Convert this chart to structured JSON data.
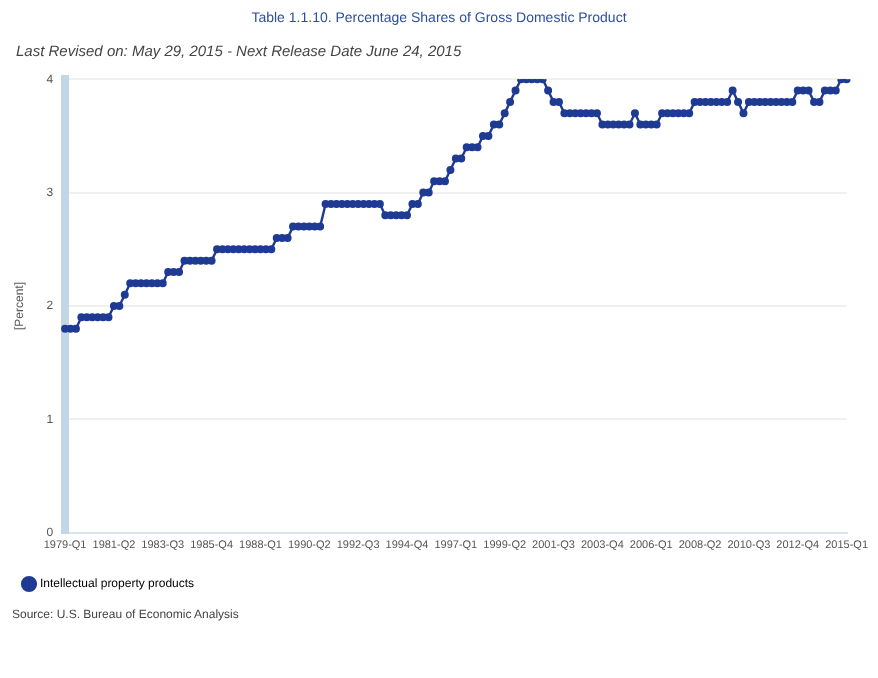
{
  "chart_data": {
    "type": "line",
    "title": "Table 1.1.10. Percentage Shares of Gross Domestic Product",
    "subtitle": "Last Revised on: May 29, 2015 - Next Release Date June 24, 2015",
    "ylabel": "[Percent]",
    "categories": [
      "1979-Q1",
      null,
      null,
      null,
      null,
      null,
      null,
      null,
      null,
      "1981-Q2",
      null,
      null,
      null,
      null,
      null,
      null,
      null,
      null,
      "1983-Q3",
      null,
      null,
      null,
      null,
      null,
      null,
      null,
      null,
      "1985-Q4",
      null,
      null,
      null,
      null,
      null,
      null,
      null,
      null,
      "1988-Q1",
      null,
      null,
      null,
      null,
      null,
      null,
      null,
      null,
      "1990-Q2",
      null,
      null,
      null,
      null,
      null,
      null,
      null,
      null,
      "1992-Q3",
      null,
      null,
      null,
      null,
      null,
      null,
      null,
      null,
      "1994-Q4",
      null,
      null,
      null,
      null,
      null,
      null,
      null,
      null,
      "1997-Q1",
      null,
      null,
      null,
      null,
      null,
      null,
      null,
      null,
      "1999-Q2",
      null,
      null,
      null,
      null,
      null,
      null,
      null,
      null,
      "2001-Q3",
      null,
      null,
      null,
      null,
      null,
      null,
      null,
      null,
      "2003-Q4",
      null,
      null,
      null,
      null,
      null,
      null,
      null,
      null,
      "2006-Q1",
      null,
      null,
      null,
      null,
      null,
      null,
      null,
      null,
      "2008-Q2",
      null,
      null,
      null,
      null,
      null,
      null,
      null,
      null,
      "2010-Q3",
      null,
      null,
      null,
      null,
      null,
      null,
      null,
      null,
      "2012-Q4",
      null,
      null,
      null,
      null,
      null,
      null,
      null,
      null,
      "2015-Q1"
    ],
    "series": [
      {
        "name": "Intellectual property products",
        "color": "#1f3a93",
        "values": [
          1.8,
          1.8,
          1.8,
          1.9,
          1.9,
          1.9,
          1.9,
          1.9,
          1.9,
          2.0,
          2.0,
          2.1,
          2.2,
          2.2,
          2.2,
          2.2,
          2.2,
          2.2,
          2.2,
          2.3,
          2.3,
          2.3,
          2.4,
          2.4,
          2.4,
          2.4,
          2.4,
          2.4,
          2.5,
          2.5,
          2.5,
          2.5,
          2.5,
          2.5,
          2.5,
          2.5,
          2.5,
          2.5,
          2.5,
          2.6,
          2.6,
          2.6,
          2.7,
          2.7,
          2.7,
          2.7,
          2.7,
          2.7,
          2.9,
          2.9,
          2.9,
          2.9,
          2.9,
          2.9,
          2.9,
          2.9,
          2.9,
          2.9,
          2.9,
          2.8,
          2.8,
          2.8,
          2.8,
          2.8,
          2.9,
          2.9,
          3.0,
          3.0,
          3.1,
          3.1,
          3.1,
          3.2,
          3.3,
          3.3,
          3.4,
          3.4,
          3.4,
          3.5,
          3.5,
          3.6,
          3.6,
          3.7,
          3.8,
          3.9,
          4.0,
          4.0,
          4.0,
          4.0,
          4.0,
          3.9,
          3.8,
          3.8,
          3.7,
          3.7,
          3.7,
          3.7,
          3.7,
          3.7,
          3.7,
          3.6,
          3.6,
          3.6,
          3.6,
          3.6,
          3.6,
          3.7,
          3.6,
          3.6,
          3.6,
          3.6,
          3.7,
          3.7,
          3.7,
          3.7,
          3.7,
          3.7,
          3.8,
          3.8,
          3.8,
          3.8,
          3.8,
          3.8,
          3.8,
          3.9,
          3.8,
          3.7,
          3.8,
          3.8,
          3.8,
          3.8,
          3.8,
          3.8,
          3.8,
          3.8,
          3.8,
          3.9,
          3.9,
          3.9,
          3.8,
          3.8,
          3.9,
          3.9,
          3.9,
          4.0,
          4.0
        ]
      }
    ],
    "ylim": [
      0,
      4
    ],
    "yticks": [
      0,
      1,
      2,
      3,
      4
    ],
    "grid": "y",
    "legend": "bottom left",
    "marker": "circle",
    "line_style": "solid",
    "annotations": [
      "Source: U.S. Bureau of Economic Analysis"
    ]
  }
}
